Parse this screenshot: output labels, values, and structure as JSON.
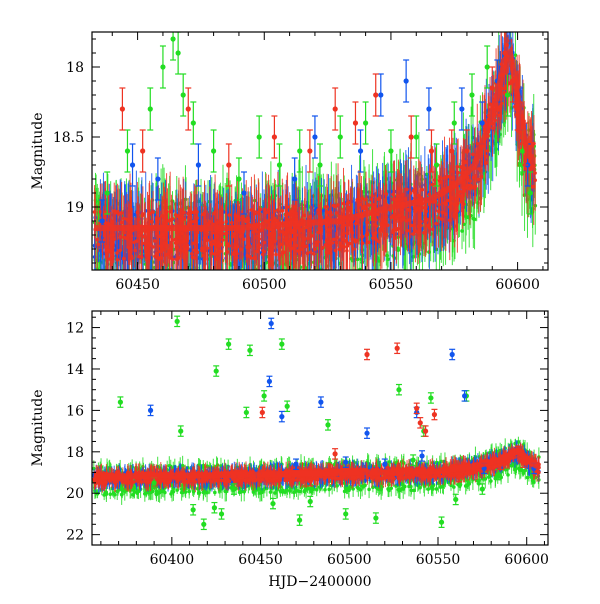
{
  "chart_data": [
    {
      "type": "scatter",
      "title": "",
      "xlabel": "",
      "ylabel": "Magnitude",
      "xlim": [
        60432,
        60612
      ],
      "ylim": [
        19.45,
        17.75
      ],
      "y_inverted": true,
      "xticks": [
        60450,
        60500,
        60550,
        60600
      ],
      "yticks": [
        18,
        18.5,
        19
      ],
      "error_bars": true,
      "series": [
        {
          "color": "#22dd22",
          "values": [
            [
              60438,
              18.9
            ],
            [
              60446,
              18.6
            ],
            [
              60455,
              18.3
            ],
            [
              60460,
              18.0
            ],
            [
              60464,
              17.8
            ],
            [
              60466,
              17.9
            ],
            [
              60468,
              18.2
            ],
            [
              60472,
              18.4
            ],
            [
              60480,
              18.6
            ],
            [
              60490,
              18.8
            ],
            [
              60498,
              18.5
            ],
            [
              60506,
              18.7
            ],
            [
              60514,
              18.6
            ],
            [
              60522,
              18.7
            ],
            [
              60530,
              18.5
            ],
            [
              60540,
              18.4
            ],
            [
              60550,
              18.6
            ],
            [
              60560,
              18.5
            ],
            [
              60568,
              18.7
            ],
            [
              60575,
              18.4
            ],
            [
              60582,
              18.2
            ],
            [
              60588,
              18.0
            ],
            [
              60596,
              18.2
            ],
            [
              60602,
              18.6
            ],
            [
              60605,
              18.9
            ]
          ]
        },
        {
          "color": "#1155ee",
          "values": [
            [
              60436,
              19.1
            ],
            [
              60448,
              18.7
            ],
            [
              60458,
              18.8
            ],
            [
              60474,
              18.7
            ],
            [
              60492,
              18.9
            ],
            [
              60512,
              18.8
            ],
            [
              60520,
              18.5
            ],
            [
              60538,
              18.6
            ],
            [
              60546,
              18.2
            ],
            [
              60556,
              18.1
            ],
            [
              60565,
              18.3
            ],
            [
              60578,
              18.3
            ],
            [
              60586,
              18.4
            ],
            [
              60592,
              18.1
            ],
            [
              60597,
              17.9
            ],
            [
              60601,
              18.3
            ],
            [
              60604,
              18.7
            ]
          ]
        },
        {
          "color": "#ee3322",
          "values": [
            [
              60444,
              18.3
            ],
            [
              60452,
              18.6
            ],
            [
              60470,
              18.3
            ],
            [
              60486,
              18.7
            ],
            [
              60504,
              18.5
            ],
            [
              60518,
              18.6
            ],
            [
              60528,
              18.3
            ],
            [
              60536,
              18.4
            ],
            [
              60544,
              18.2
            ],
            [
              60558,
              18.5
            ],
            [
              60566,
              18.6
            ],
            [
              60574,
              18.6
            ],
            [
              60580,
              18.6
            ],
            [
              60590,
              18.15
            ],
            [
              60595,
              17.9
            ],
            [
              60598,
              18.1
            ],
            [
              60600,
              18.3
            ],
            [
              60603,
              18.55
            ]
          ]
        }
      ],
      "trend": [
        [
          60433,
          19.15
        ],
        [
          60450,
          19.15
        ],
        [
          60470,
          19.15
        ],
        [
          60490,
          19.15
        ],
        [
          60510,
          19.12
        ],
        [
          60530,
          19.1
        ],
        [
          60550,
          19.0
        ],
        [
          60565,
          18.95
        ],
        [
          60575,
          18.85
        ],
        [
          60583,
          18.7
        ],
        [
          60588,
          18.45
        ],
        [
          60592,
          18.2
        ],
        [
          60595,
          17.95
        ],
        [
          60597,
          17.9
        ],
        [
          60599,
          18.1
        ],
        [
          60601,
          18.35
        ],
        [
          60603,
          18.55
        ],
        [
          60605,
          18.65
        ]
      ]
    },
    {
      "type": "scatter",
      "title": "",
      "xlabel": "HJD−2400000",
      "ylabel": "Magnitude",
      "xlim": [
        60355,
        60612
      ],
      "ylim": [
        22.5,
        11.2
      ],
      "y_inverted": true,
      "xticks": [
        60400,
        60450,
        60500,
        60550,
        60600
      ],
      "yticks": [
        12,
        14,
        16,
        18,
        20,
        22
      ],
      "error_bars": true,
      "series": [
        {
          "color": "#22dd22",
          "values": [
            [
              60371,
              15.6
            ],
            [
              60390,
              19.5
            ],
            [
              60403,
              11.7
            ],
            [
              60405,
              17.0
            ],
            [
              60412,
              20.8
            ],
            [
              60418,
              21.5
            ],
            [
              60424,
              20.7
            ],
            [
              60425,
              14.1
            ],
            [
              60428,
              21.0
            ],
            [
              60432,
              12.8
            ],
            [
              60435,
              19.8
            ],
            [
              60442,
              16.1
            ],
            [
              60444,
              13.1
            ],
            [
              60452,
              15.3
            ],
            [
              60457,
              20.5
            ],
            [
              60462,
              12.8
            ],
            [
              60465,
              15.8
            ],
            [
              60472,
              21.3
            ],
            [
              60478,
              20.4
            ],
            [
              60488,
              16.7
            ],
            [
              60498,
              21.0
            ],
            [
              60515,
              21.2
            ],
            [
              60528,
              15.0
            ],
            [
              60536,
              18.4
            ],
            [
              60542,
              17.0
            ],
            [
              60546,
              15.4
            ],
            [
              60552,
              21.4
            ],
            [
              60560,
              20.3
            ],
            [
              60566,
              15.3
            ],
            [
              60575,
              19.8
            ],
            [
              60584,
              19.1
            ]
          ]
        },
        {
          "color": "#1155ee",
          "values": [
            [
              60388,
              16.0
            ],
            [
              60456,
              11.8
            ],
            [
              60455,
              14.6
            ],
            [
              60462,
              16.3
            ],
            [
              60470,
              18.6
            ],
            [
              60484,
              15.6
            ],
            [
              60498,
              18.5
            ],
            [
              60510,
              17.1
            ],
            [
              60520,
              18.6
            ],
            [
              60538,
              16.1
            ],
            [
              60541,
              18.2
            ],
            [
              60558,
              13.3
            ],
            [
              60565,
              15.3
            ],
            [
              60576,
              18.8
            ],
            [
              60595,
              18.0
            ],
            [
              60604,
              18.8
            ]
          ]
        },
        {
          "color": "#ee3322",
          "values": [
            [
              60451,
              16.1
            ],
            [
              60478,
              19.4
            ],
            [
              60492,
              18.1
            ],
            [
              60510,
              13.3
            ],
            [
              60527,
              13.0
            ],
            [
              60538,
              15.9
            ],
            [
              60540,
              16.6
            ],
            [
              60543,
              17.0
            ],
            [
              60548,
              16.2
            ],
            [
              60562,
              19.2
            ],
            [
              60585,
              18.6
            ],
            [
              60595,
              18.0
            ],
            [
              60598,
              18.5
            ]
          ]
        }
      ],
      "trend": [
        [
          60360,
          19.2
        ],
        [
          60400,
          19.15
        ],
        [
          60450,
          19.1
        ],
        [
          60500,
          19.0
        ],
        [
          60550,
          18.95
        ],
        [
          60570,
          18.7
        ],
        [
          60585,
          18.4
        ],
        [
          60592,
          18.1
        ],
        [
          60595,
          17.95
        ],
        [
          60598,
          18.15
        ],
        [
          60602,
          18.5
        ],
        [
          60606,
          18.7
        ]
      ]
    }
  ]
}
